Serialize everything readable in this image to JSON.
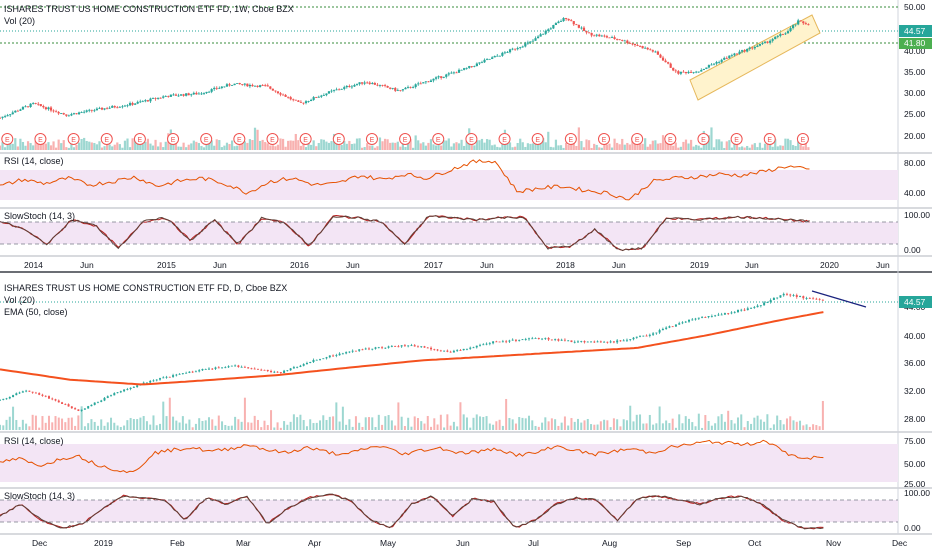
{
  "colors": {
    "up": "#26a69a",
    "down": "#ef5350",
    "rsi": "#e65100",
    "rsi_band": "#f3e5f5",
    "stoch_k": "#b71c1c",
    "stoch_d": "#5d4037",
    "ema": "#f4511e",
    "price_line": "#26a69a",
    "level": "#388e3c",
    "channel_fill": "#fff3cd",
    "trend_line": "#1a237e"
  },
  "weekly": {
    "title": "ISHARES TRUST US HOME CONSTRUCTION ETF FD, 1W, Cboe BZX",
    "vol_label": "Vol (20)",
    "rsi_label": "RSI (14, close)",
    "stoch_label": "SlowStoch (14, 3)",
    "earnings_marker": "E",
    "price_axis": [
      "50.00",
      "40.00",
      "35.00",
      "30.00",
      "25.00",
      "20.00"
    ],
    "price_tag": "44.57",
    "level_tag": "41.80",
    "rsi_axis": [
      "80.00",
      "40.00"
    ],
    "stoch_axis": [
      "100.00",
      "0.00"
    ],
    "x_labels": [
      "2014",
      "Jun",
      "2015",
      "Jun",
      "2016",
      "Jun",
      "2017",
      "Jun",
      "2018",
      "Jun",
      "2019",
      "Jun",
      "2020",
      "Jun"
    ]
  },
  "daily": {
    "title": "ISHARES TRUST US HOME CONSTRUCTION ETF FD, D, Cboe BZX",
    "vol_label": "Vol (20)",
    "ema_label": "EMA (50, close)",
    "rsi_label": "RSI (14, close)",
    "stoch_label": "SlowStoch (14, 3)",
    "price_axis": [
      "44.00",
      "40.00",
      "36.00",
      "32.00",
      "28.00"
    ],
    "price_tag": "44.57",
    "rsi_axis": [
      "75.00",
      "50.00",
      "25.00"
    ],
    "stoch_axis": [
      "100.00",
      "0.00"
    ],
    "x_labels": [
      "Dec",
      "2019",
      "Feb",
      "Mar",
      "Apr",
      "May",
      "Jun",
      "Jul",
      "Aug",
      "Sep",
      "Oct",
      "Nov",
      "Dec"
    ]
  },
  "chart_data": [
    {
      "type": "candlestick",
      "title": "ISHARES TRUST US HOME CONSTRUCTION ETF FD, 1W, Cboe BZX",
      "interval": "1W",
      "x_range": [
        "2013-10",
        "2020-07"
      ],
      "y_scale": "log",
      "ylim": [
        17,
        51
      ],
      "close_series": [
        {
          "t": "2013-10",
          "c": 21.5
        },
        {
          "t": "2014-01",
          "c": 24
        },
        {
          "t": "2014-04",
          "c": 22
        },
        {
          "t": "2014-07",
          "c": 23
        },
        {
          "t": "2014-10",
          "c": 24
        },
        {
          "t": "2015-01",
          "c": 25.5
        },
        {
          "t": "2015-04",
          "c": 26
        },
        {
          "t": "2015-07",
          "c": 28
        },
        {
          "t": "2015-10",
          "c": 27.5
        },
        {
          "t": "2016-01",
          "c": 24
        },
        {
          "t": "2016-04",
          "c": 26.5
        },
        {
          "t": "2016-07",
          "c": 28.5
        },
        {
          "t": "2016-10",
          "c": 26.5
        },
        {
          "t": "2017-01",
          "c": 29
        },
        {
          "t": "2017-04",
          "c": 31.5
        },
        {
          "t": "2017-07",
          "c": 35
        },
        {
          "t": "2017-10",
          "c": 39
        },
        {
          "t": "2018-01",
          "c": 47
        },
        {
          "t": "2018-03",
          "c": 41.5
        },
        {
          "t": "2018-06",
          "c": 39.5
        },
        {
          "t": "2018-09",
          "c": 36
        },
        {
          "t": "2018-11",
          "c": 30.5
        },
        {
          "t": "2019-01",
          "c": 31
        },
        {
          "t": "2019-04",
          "c": 35
        },
        {
          "t": "2019-07",
          "c": 38.5
        },
        {
          "t": "2019-09",
          "c": 42
        },
        {
          "t": "2019-10",
          "c": 45.5
        },
        {
          "t": "2019-11",
          "c": 44.57
        }
      ],
      "levels": [
        50.0,
        41.8
      ],
      "last_price": 44.57,
      "volume": true,
      "earnings_markers": true,
      "rsi": {
        "ylim": [
          20,
          90
        ],
        "ticks": [
          80,
          40
        ],
        "values": [
          48,
          58,
          52,
          60,
          50,
          55,
          62,
          48,
          56,
          60,
          52,
          38,
          55,
          60,
          50,
          52,
          64,
          58,
          66,
          60,
          72,
          84,
          86,
          40,
          45,
          48,
          42,
          38,
          28,
          55,
          60,
          62,
          66,
          64,
          70,
          78,
          72
        ]
      },
      "stoch": {
        "ylim": [
          0,
          100
        ],
        "ticks": [
          100,
          0
        ],
        "values": [
          80,
          60,
          20,
          85,
          70,
          10,
          80,
          90,
          30,
          85,
          20,
          90,
          75,
          15,
          95,
          90,
          80,
          20,
          95,
          90,
          85,
          90,
          92,
          10,
          15,
          60,
          5,
          10,
          90,
          85,
          88,
          92,
          90,
          85,
          80
        ]
      },
      "xlabel": "",
      "ylabel": ""
    },
    {
      "type": "candlestick",
      "title": "ISHARES TRUST US HOME CONSTRUCTION ETF FD, D, Cboe BZX",
      "interval": "D",
      "x_range": [
        "2018-11-20",
        "2019-12-10"
      ],
      "ylim": [
        26,
        46
      ],
      "close_series": [
        {
          "t": "2018-11-20",
          "c": 30
        },
        {
          "t": "2018-12-01",
          "c": 31.5
        },
        {
          "t": "2018-12-10",
          "c": 30.5
        },
        {
          "t": "2018-12-24",
          "c": 28.5
        },
        {
          "t": "2019-01-08",
          "c": 31
        },
        {
          "t": "2019-01-25",
          "c": 33
        },
        {
          "t": "2019-02-15",
          "c": 34.5
        },
        {
          "t": "2019-03-01",
          "c": 35
        },
        {
          "t": "2019-03-20",
          "c": 34
        },
        {
          "t": "2019-04-05",
          "c": 36
        },
        {
          "t": "2019-04-25",
          "c": 37.5
        },
        {
          "t": "2019-05-15",
          "c": 38
        },
        {
          "t": "2019-06-01",
          "c": 37
        },
        {
          "t": "2019-06-20",
          "c": 38.5
        },
        {
          "t": "2019-07-10",
          "c": 39
        },
        {
          "t": "2019-07-25",
          "c": 38.5
        },
        {
          "t": "2019-08-10",
          "c": 38.5
        },
        {
          "t": "2019-08-25",
          "c": 39.5
        },
        {
          "t": "2019-09-10",
          "c": 41.5
        },
        {
          "t": "2019-09-25",
          "c": 42.5
        },
        {
          "t": "2019-10-10",
          "c": 43.5
        },
        {
          "t": "2019-10-22",
          "c": 45.5
        },
        {
          "t": "2019-11-01",
          "c": 44.8
        },
        {
          "t": "2019-11-08",
          "c": 44.57
        }
      ],
      "ema_50": [
        {
          "t": "2018-11-20",
          "v": 34.5
        },
        {
          "t": "2018-12-20",
          "v": 33
        },
        {
          "t": "2019-01-20",
          "v": 32.3
        },
        {
          "t": "2019-02-20",
          "v": 33
        },
        {
          "t": "2019-03-20",
          "v": 33.7
        },
        {
          "t": "2019-04-20",
          "v": 34.8
        },
        {
          "t": "2019-05-20",
          "v": 35.8
        },
        {
          "t": "2019-06-20",
          "v": 36.4
        },
        {
          "t": "2019-07-20",
          "v": 37
        },
        {
          "t": "2019-08-20",
          "v": 37.6
        },
        {
          "t": "2019-09-20",
          "v": 39.5
        },
        {
          "t": "2019-10-20",
          "v": 41.6
        },
        {
          "t": "2019-11-08",
          "v": 42.8
        }
      ],
      "last_price": 44.57,
      "volume": true,
      "rsi": {
        "ylim": [
          10,
          82
        ],
        "ticks": [
          75,
          50,
          25
        ],
        "values": [
          45,
          50,
          40,
          48,
          55,
          42,
          35,
          30,
          58,
          62,
          66,
          60,
          64,
          70,
          62,
          58,
          66,
          60,
          55,
          64,
          68,
          56,
          62,
          65,
          58,
          60,
          64,
          55,
          58,
          68,
          62,
          56,
          60,
          64,
          58,
          66,
          70,
          74,
          72,
          70,
          76,
          58,
          50,
          52
        ]
      },
      "stoch": {
        "ylim": [
          0,
          100
        ],
        "ticks": [
          100,
          0
        ],
        "values": [
          40,
          70,
          30,
          10,
          20,
          60,
          90,
          85,
          80,
          30,
          85,
          70,
          90,
          20,
          60,
          85,
          95,
          80,
          30,
          10,
          70,
          90,
          40,
          85,
          75,
          10,
          30,
          70,
          85,
          80,
          30,
          85,
          90,
          80,
          70,
          85,
          90,
          70,
          30,
          10,
          10
        ]
      },
      "xlabel": "",
      "ylabel": ""
    }
  ]
}
